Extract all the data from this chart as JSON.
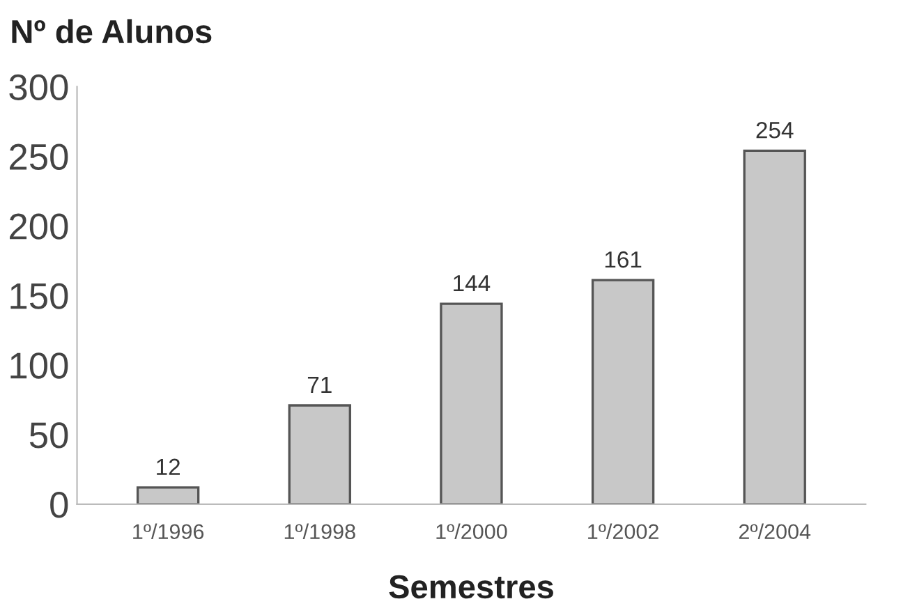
{
  "chart_data": {
    "type": "bar",
    "categories": [
      "1º/1996",
      "1º/1998",
      "1º/2000",
      "1º/2002",
      "2º/2004"
    ],
    "values": [
      12,
      71,
      144,
      161,
      254
    ],
    "color": "#c8c8c8",
    "xlabel": "Semestres",
    "ylabel": "Nº de Alunos",
    "ylim": [
      0,
      300
    ],
    "yticks": [
      0,
      50,
      100,
      150,
      200,
      250,
      300
    ],
    "data_labels": true,
    "grid": false,
    "legend": false
  }
}
